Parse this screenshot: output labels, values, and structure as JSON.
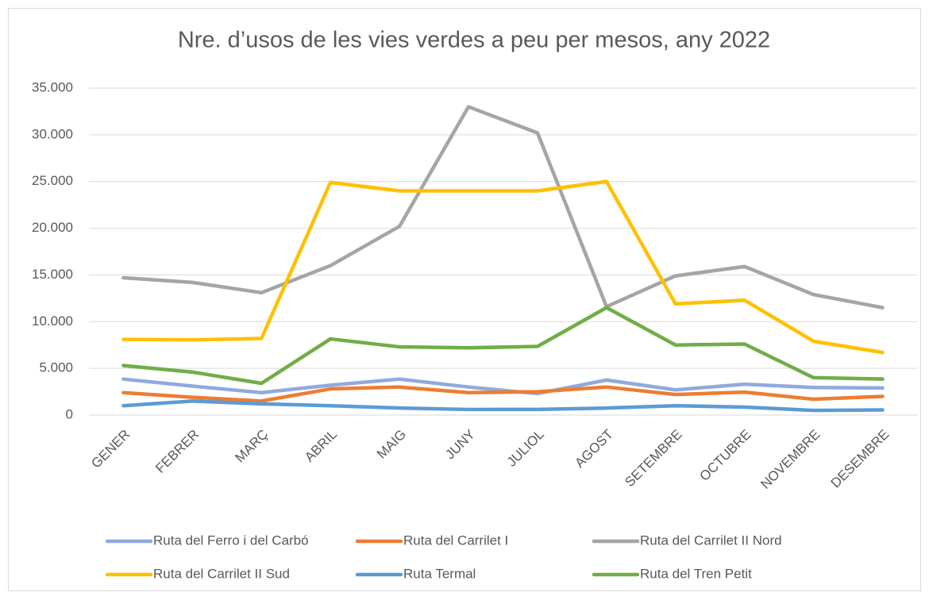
{
  "chart_data": {
    "type": "line",
    "title": "Nre. d’usos de les vies verdes a peu per mesos, any 2022",
    "categories": [
      "GENER",
      "FEBRER",
      "MARÇ",
      "ABRIL",
      "MAIG",
      "JUNY",
      "JULIOL",
      "AGOST",
      "SETEMBRE",
      "OCTUBRE",
      "NOVEMBRE",
      "DESEMBRE"
    ],
    "series": [
      {
        "name": "Ruta del Ferro i del Carbó",
        "color": "#8faadc",
        "values": [
          3850,
          3100,
          2400,
          3200,
          3850,
          3000,
          2300,
          3750,
          2700,
          3300,
          2950,
          2900
        ]
      },
      {
        "name": "Ruta del Carrilet I",
        "color": "#ed7d31",
        "values": [
          2400,
          1900,
          1500,
          2800,
          3000,
          2400,
          2500,
          3000,
          2200,
          2450,
          1700,
          2000
        ]
      },
      {
        "name": "Ruta del Carrilet II Nord",
        "color": "#a5a5a5",
        "values": [
          14700,
          14200,
          13100,
          16000,
          20200,
          33000,
          30200,
          11600,
          14900,
          15900,
          12900,
          11500
        ]
      },
      {
        "name": "Ruta del Carrilet II Sud",
        "color": "#ffc000",
        "values": [
          8100,
          8050,
          8200,
          24900,
          24000,
          24000,
          24000,
          25000,
          11900,
          12300,
          7900,
          6700
        ]
      },
      {
        "name": "Ruta Termal",
        "color": "#5b9bd5",
        "values": [
          1000,
          1500,
          1200,
          1000,
          750,
          600,
          600,
          750,
          1000,
          850,
          500,
          550
        ]
      },
      {
        "name": "Ruta del Tren Petit",
        "color": "#70ad47",
        "values": [
          5300,
          4600,
          3400,
          8150,
          7300,
          7200,
          7350,
          11500,
          7500,
          7600,
          4000,
          3850
        ]
      }
    ],
    "ylim": [
      0,
      35000
    ],
    "yticks": [
      0,
      {
        "value": 5000,
        "label": "5.000"
      },
      {
        "value": 10000,
        "label": "10.000"
      },
      {
        "value": 15000,
        "label": "15.000"
      },
      {
        "value": 20000,
        "label": "20.000"
      },
      {
        "value": 25000,
        "label": "25.000"
      },
      {
        "value": 30000,
        "label": "30.000"
      },
      {
        "value": 35000,
        "label": "35.000"
      }
    ],
    "grid": true
  }
}
